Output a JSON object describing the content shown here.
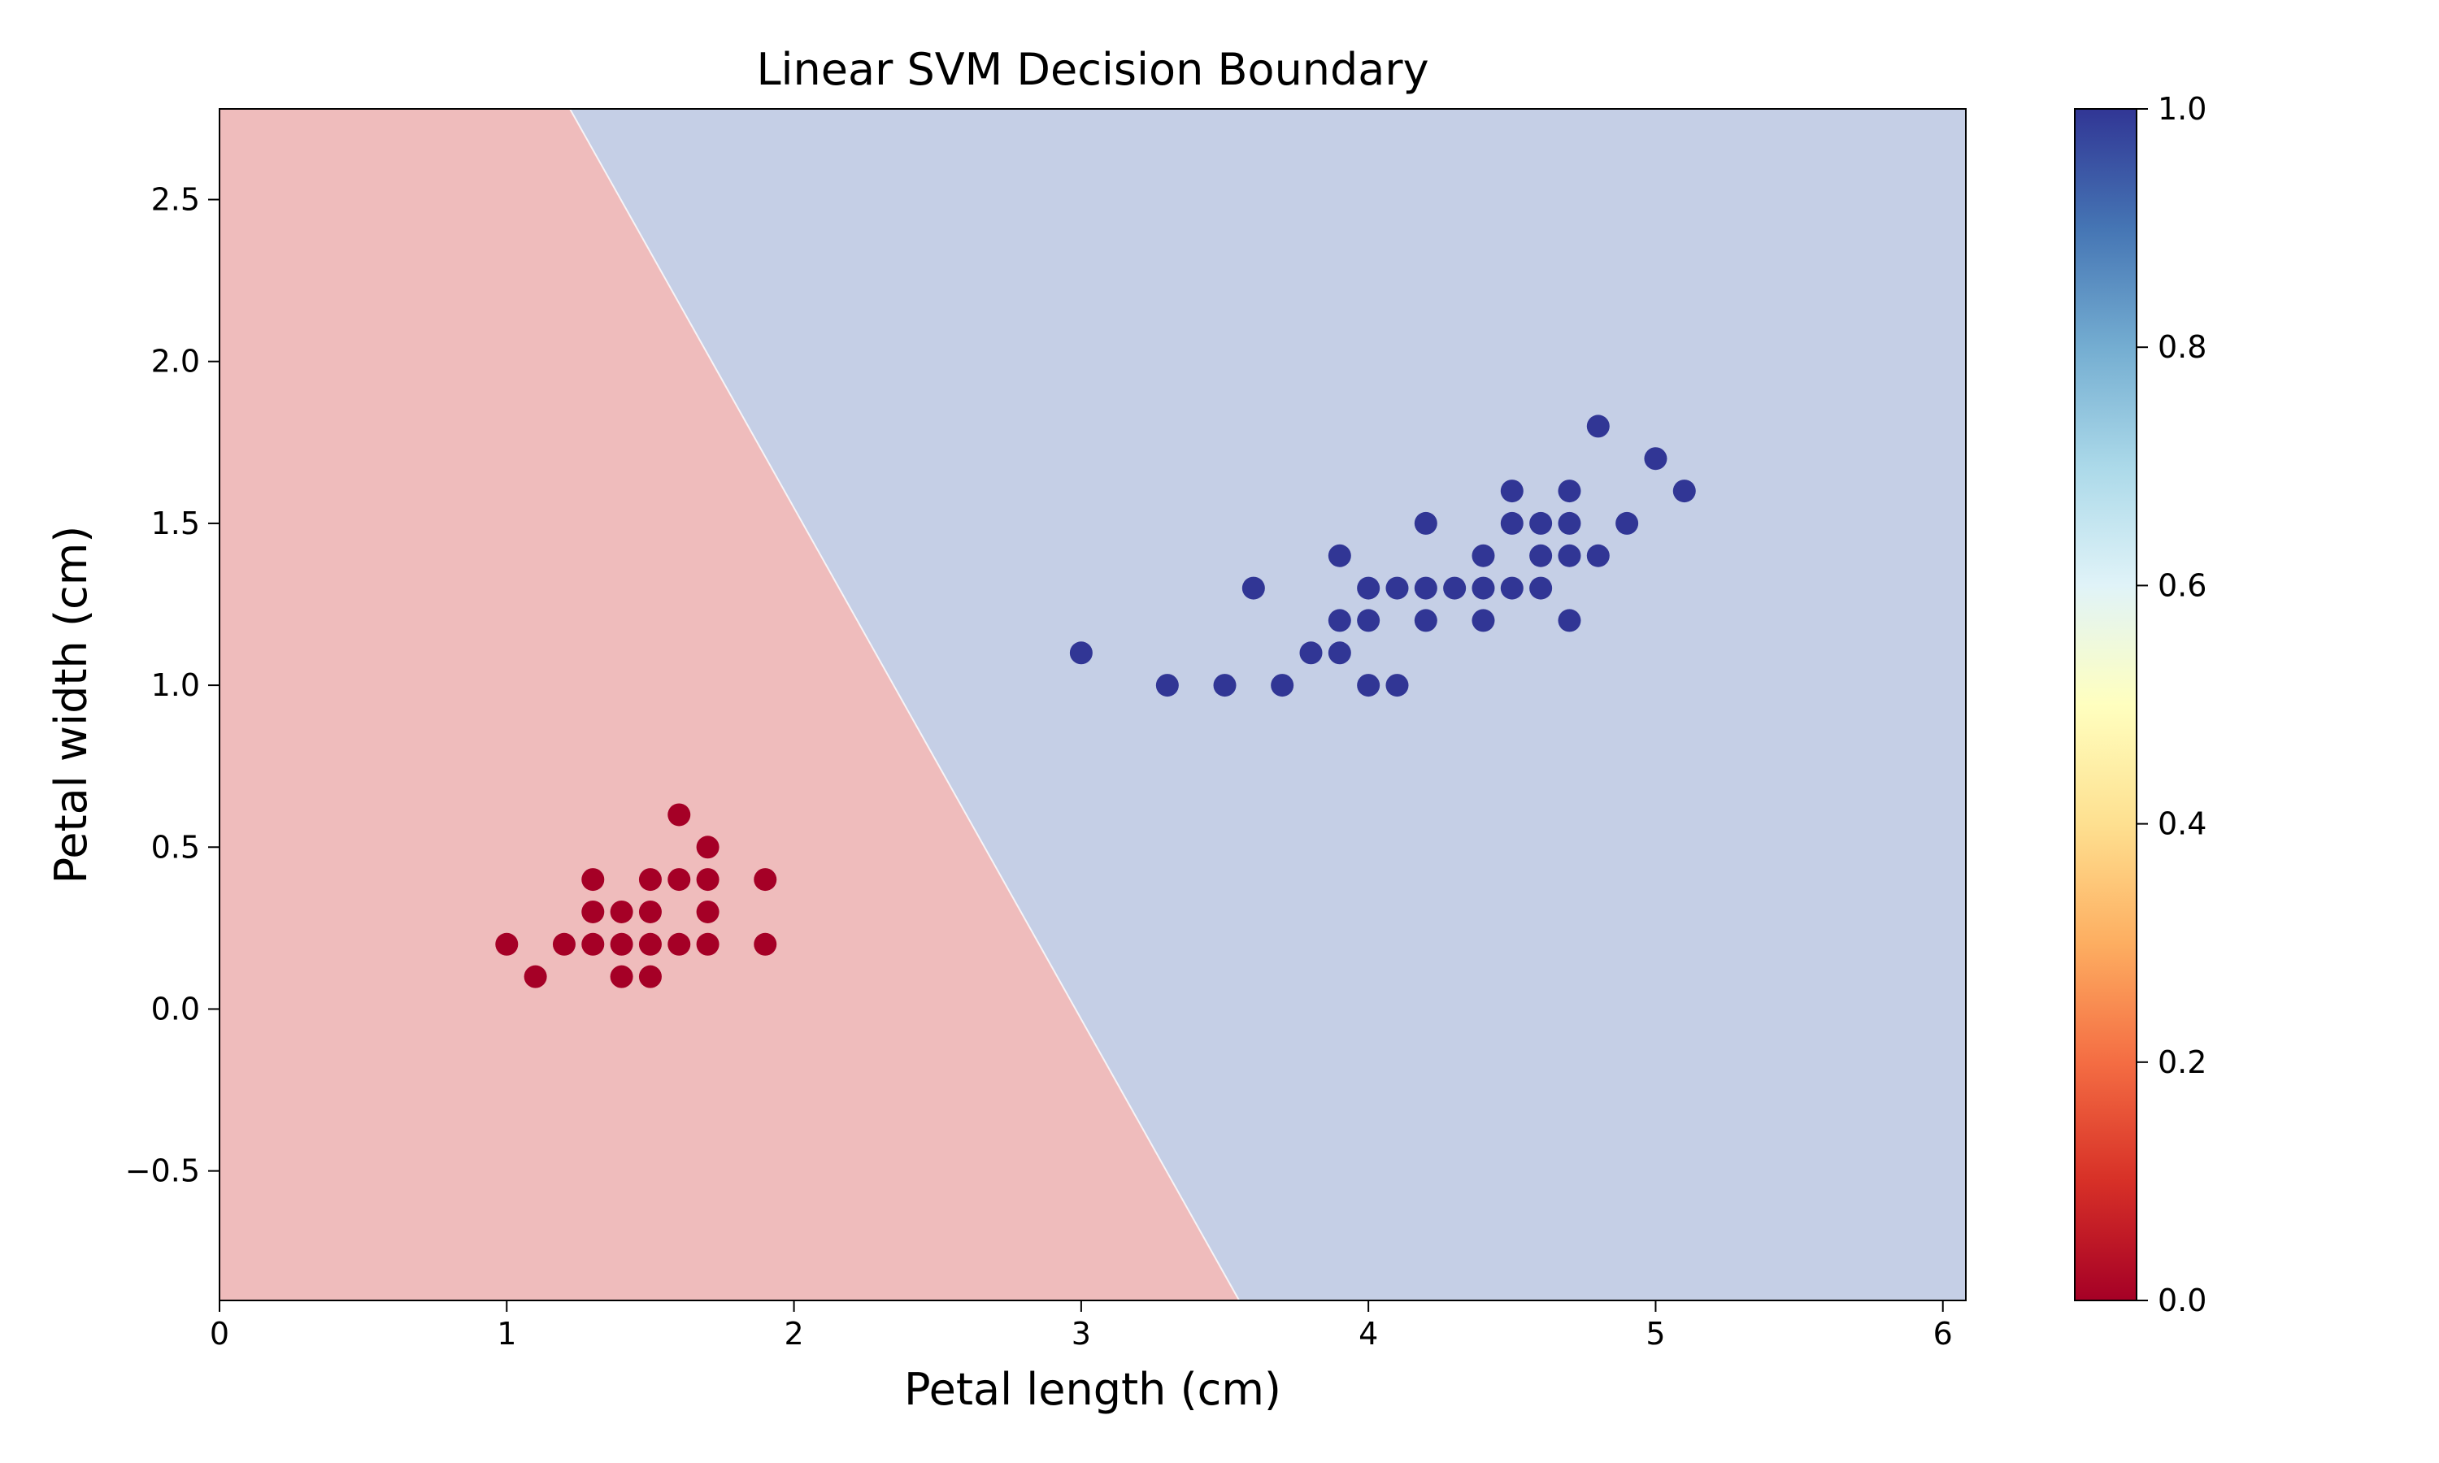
{
  "chart_data": {
    "type": "scatter",
    "title": "Linear SVM Decision Boundary",
    "xlabel": "Petal length (cm)",
    "ylabel": "Petal width (cm)",
    "xlim": [
      0,
      6.08
    ],
    "ylim": [
      -0.9,
      2.78
    ],
    "x_ticks": [
      0,
      1,
      2,
      3,
      4,
      5,
      6
    ],
    "y_ticks": [
      -0.5,
      0.0,
      0.5,
      1.0,
      1.5,
      2.0,
      2.5
    ],
    "y_tick_labels": [
      "−0.5",
      "0.0",
      "0.5",
      "1.0",
      "1.5",
      "2.0",
      "2.5"
    ],
    "grid": false,
    "decision_boundary": {
      "points": [
        [
          1.22,
          2.78
        ],
        [
          3.55,
          -0.9
        ]
      ],
      "region_colors": {
        "class_0": "#efbcbc",
        "class_1": "#c5cfe6"
      }
    },
    "series": [
      {
        "color": "#a50026",
        "points": [
          [
            1.0,
            0.2
          ],
          [
            1.1,
            0.1
          ],
          [
            1.2,
            0.2
          ],
          [
            1.3,
            0.4
          ],
          [
            1.3,
            0.3
          ],
          [
            1.3,
            0.2
          ],
          [
            1.4,
            0.3
          ],
          [
            1.4,
            0.2
          ],
          [
            1.4,
            0.1
          ],
          [
            1.5,
            0.4
          ],
          [
            1.5,
            0.3
          ],
          [
            1.5,
            0.2
          ],
          [
            1.5,
            0.1
          ],
          [
            1.6,
            0.6
          ],
          [
            1.6,
            0.4
          ],
          [
            1.6,
            0.2
          ],
          [
            1.7,
            0.5
          ],
          [
            1.7,
            0.4
          ],
          [
            1.7,
            0.3
          ],
          [
            1.7,
            0.2
          ],
          [
            1.9,
            0.4
          ],
          [
            1.9,
            0.2
          ]
        ]
      },
      {
        "color": "#313695",
        "points": [
          [
            3.0,
            1.1
          ],
          [
            3.3,
            1.0
          ],
          [
            3.5,
            1.0
          ],
          [
            3.6,
            1.3
          ],
          [
            3.7,
            1.0
          ],
          [
            3.8,
            1.1
          ],
          [
            3.9,
            1.4
          ],
          [
            3.9,
            1.2
          ],
          [
            3.9,
            1.1
          ],
          [
            4.0,
            1.3
          ],
          [
            4.0,
            1.2
          ],
          [
            4.0,
            1.0
          ],
          [
            4.1,
            1.3
          ],
          [
            4.1,
            1.0
          ],
          [
            4.2,
            1.5
          ],
          [
            4.2,
            1.3
          ],
          [
            4.2,
            1.2
          ],
          [
            4.3,
            1.3
          ],
          [
            4.4,
            1.4
          ],
          [
            4.4,
            1.3
          ],
          [
            4.4,
            1.2
          ],
          [
            4.5,
            1.6
          ],
          [
            4.5,
            1.5
          ],
          [
            4.5,
            1.3
          ],
          [
            4.6,
            1.5
          ],
          [
            4.6,
            1.4
          ],
          [
            4.6,
            1.3
          ],
          [
            4.7,
            1.6
          ],
          [
            4.7,
            1.5
          ],
          [
            4.7,
            1.4
          ],
          [
            4.7,
            1.2
          ],
          [
            4.8,
            1.8
          ],
          [
            4.8,
            1.4
          ],
          [
            4.9,
            1.5
          ],
          [
            5.0,
            1.7
          ],
          [
            5.1,
            1.6
          ]
        ]
      }
    ],
    "colorbar": {
      "range": [
        0.0,
        1.0
      ],
      "ticks": [
        "0.0",
        "0.2",
        "0.4",
        "0.6",
        "0.8",
        "1.0"
      ],
      "colormap": [
        "#a50026",
        "#d73027",
        "#f46d43",
        "#fdae61",
        "#fee090",
        "#ffffbf",
        "#e0f3f8",
        "#abd9e9",
        "#74add1",
        "#4575b4",
        "#313695"
      ]
    }
  }
}
